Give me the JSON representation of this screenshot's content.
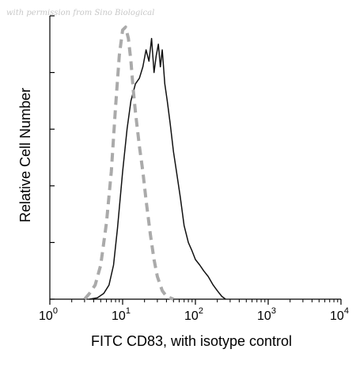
{
  "watermark": "with permission from Sino Biological",
  "chart_data": {
    "type": "line",
    "title": "",
    "xlabel": "FITC CD83, with isotype control",
    "ylabel": "Relative Cell Number",
    "x_scale": "log",
    "xlim": [
      1,
      10000
    ],
    "ylim": [
      0,
      100
    ],
    "x_ticks": [
      {
        "base": "10",
        "exp": "0",
        "value": 1
      },
      {
        "base": "10",
        "exp": "1",
        "value": 10
      },
      {
        "base": "10",
        "exp": "2",
        "value": 100
      },
      {
        "base": "10",
        "exp": "3",
        "value": 1000
      },
      {
        "base": "10",
        "exp": "4",
        "value": 10000
      }
    ],
    "y_ticks": [
      0,
      20,
      40,
      60,
      80,
      100
    ],
    "grid": false,
    "series": [
      {
        "style": "solid",
        "color": "#111111",
        "x": [
          3.5,
          4.5,
          5.5,
          6.5,
          7.5,
          8.5,
          10,
          11.5,
          13,
          15,
          17,
          19,
          21,
          23,
          25,
          27,
          29,
          31,
          33,
          35,
          38,
          41,
          45,
          50,
          55,
          62,
          70,
          80,
          90,
          100,
          115,
          130,
          150,
          175,
          200,
          230,
          260
        ],
        "y": [
          0,
          0.5,
          2,
          5,
          12,
          25,
          45,
          60,
          70,
          76,
          78,
          82,
          88,
          84,
          92,
          80,
          86,
          90,
          82,
          88,
          76,
          70,
          62,
          52,
          45,
          36,
          26,
          20,
          17,
          14,
          12,
          10,
          8,
          5,
          3,
          1,
          0
        ]
      },
      {
        "style": "dashed",
        "color": "#aaaaaa",
        "x": [
          3,
          3.5,
          4.2,
          5,
          6,
          7,
          8,
          9,
          10,
          11,
          12,
          13,
          14,
          15,
          17,
          19,
          21,
          24,
          27,
          30,
          35,
          40,
          50
        ],
        "y": [
          0,
          2,
          5,
          12,
          27,
          45,
          68,
          86,
          95,
          96,
          92,
          84,
          74,
          66,
          54,
          45,
          35,
          23,
          14,
          8,
          3,
          1,
          0
        ]
      }
    ]
  }
}
